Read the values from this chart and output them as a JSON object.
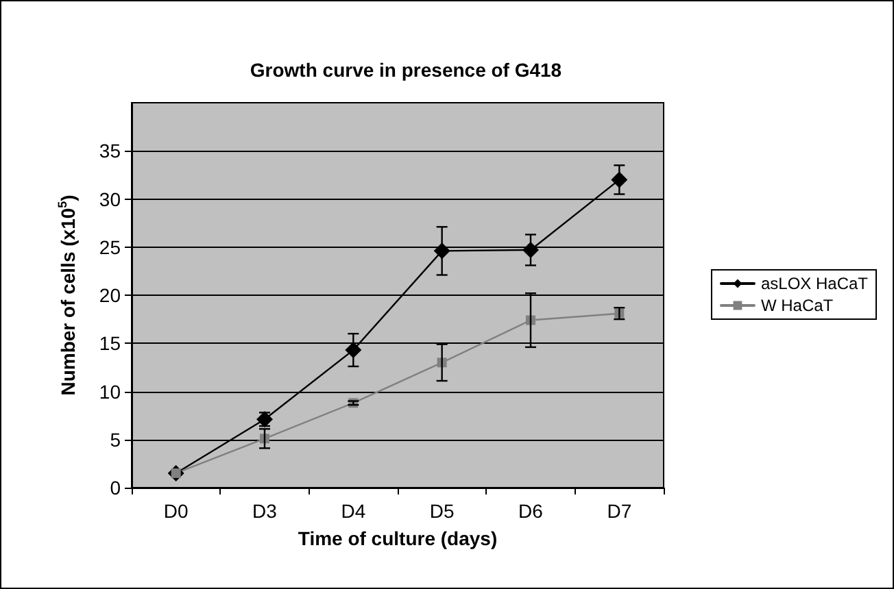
{
  "chart_data": {
    "type": "line",
    "title": "Growth curve in presence of G418",
    "xlabel": "Time of culture (days)",
    "ylabel": "Number of cells (x10$^{5}$)",
    "categories": [
      "D0",
      "D3",
      "D4",
      "D5",
      "D6",
      "D7"
    ],
    "series": [
      {
        "name": "asLOX HaCaT",
        "color": "#000000",
        "marker": "diamond",
        "values": [
          1.5,
          7.1,
          14.3,
          24.6,
          24.7,
          32.0
        ],
        "errors": [
          null,
          0.7,
          1.7,
          2.5,
          1.6,
          1.5
        ]
      },
      {
        "name": "W HaCaT",
        "color": "#808080",
        "marker": "square",
        "values": [
          1.5,
          5.1,
          8.8,
          13.0,
          17.4,
          18.1
        ],
        "errors": [
          null,
          1.0,
          0.2,
          1.9,
          2.8,
          0.6
        ]
      }
    ],
    "ylim": [
      0,
      40
    ],
    "yticks": [
      0,
      5,
      10,
      15,
      20,
      25,
      30,
      35
    ],
    "grid": "y",
    "legend": "right"
  }
}
